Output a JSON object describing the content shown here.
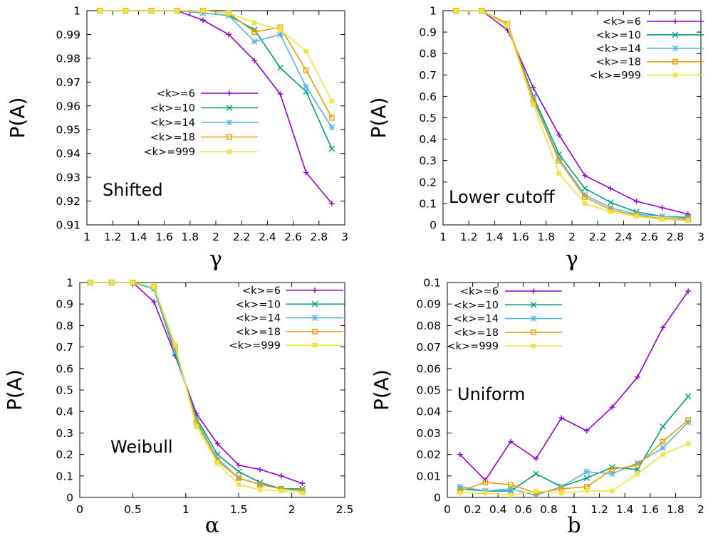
{
  "colors": {
    "k6": "#9400d3",
    "k10": "#009e73",
    "k14": "#56b4e9",
    "k18": "#e69f00",
    "k999": "#f0e442"
  },
  "chart_data": [
    {
      "type": "line",
      "annotation": "Shifted",
      "xlabel": "γ",
      "ylabel": "P(A)",
      "xlim": [
        1,
        3
      ],
      "ylim": [
        0.91,
        1
      ],
      "xticks": [
        "1",
        "1.2",
        "1.4",
        "1.6",
        "1.8",
        "2",
        "2.2",
        "2.4",
        "2.6",
        "2.8",
        "3"
      ],
      "yticks": [
        "0.91",
        "0.92",
        "0.93",
        "0.94",
        "0.95",
        "0.96",
        "0.97",
        "0.98",
        "0.99",
        "1"
      ],
      "legend_position": "left-middle",
      "x": [
        1.1,
        1.3,
        1.5,
        1.7,
        1.9,
        2.1,
        2.3,
        2.5,
        2.7,
        2.9
      ],
      "series": [
        {
          "name": "<k>=6",
          "values": [
            1,
            1,
            1,
            1,
            0.996,
            0.99,
            0.979,
            0.965,
            0.932,
            0.919
          ]
        },
        {
          "name": "<k>=10",
          "values": [
            1,
            1,
            1,
            1,
            0.999,
            0.998,
            0.992,
            0.976,
            0.966,
            0.942
          ]
        },
        {
          "name": "<k>=14",
          "values": [
            1,
            1,
            1,
            1,
            0.999,
            0.998,
            0.987,
            0.99,
            0.968,
            0.951
          ]
        },
        {
          "name": "<k>=18",
          "values": [
            1,
            1,
            1,
            1,
            1,
            0.999,
            0.991,
            0.993,
            0.975,
            0.955
          ]
        },
        {
          "name": "<k>=999",
          "values": [
            1,
            1,
            1,
            1,
            1,
            0.999,
            0.995,
            0.992,
            0.983,
            0.962
          ]
        }
      ]
    },
    {
      "type": "line",
      "annotation": "Lower cutoff",
      "xlabel": "γ",
      "ylabel": "P(A)",
      "xlim": [
        1,
        3
      ],
      "ylim": [
        0,
        1
      ],
      "xticks": [
        "1",
        "1.2",
        "1.4",
        "1.6",
        "1.8",
        "2",
        "2.2",
        "2.4",
        "2.6",
        "2.8",
        "3"
      ],
      "yticks": [
        "0",
        "0.1",
        "0.2",
        "0.3",
        "0.4",
        "0.5",
        "0.6",
        "0.7",
        "0.8",
        "0.9",
        "1"
      ],
      "legend_position": "top-right",
      "x": [
        1.1,
        1.3,
        1.5,
        1.7,
        1.9,
        2.1,
        2.3,
        2.5,
        2.7,
        2.9
      ],
      "series": [
        {
          "name": "<k>=6",
          "values": [
            1,
            1,
            0.91,
            0.64,
            0.42,
            0.23,
            0.17,
            0.11,
            0.08,
            0.05
          ]
        },
        {
          "name": "<k>=10",
          "values": [
            1,
            1,
            0.93,
            0.6,
            0.33,
            0.17,
            0.105,
            0.06,
            0.04,
            0.035
          ]
        },
        {
          "name": "<k>=14",
          "values": [
            1,
            1,
            0.93,
            0.59,
            0.31,
            0.14,
            0.08,
            0.05,
            0.04,
            0.03
          ]
        },
        {
          "name": "<k>=18",
          "values": [
            1,
            1,
            0.94,
            0.58,
            0.3,
            0.13,
            0.07,
            0.045,
            0.03,
            0.025
          ]
        },
        {
          "name": "<k>=999",
          "values": [
            1,
            1,
            0.93,
            0.56,
            0.24,
            0.1,
            0.06,
            0.04,
            0.025,
            0.02
          ]
        }
      ]
    },
    {
      "type": "line",
      "annotation": "Weibull",
      "xlabel": "α",
      "ylabel": "P(A)",
      "xlim": [
        0,
        2.5
      ],
      "ylim": [
        0,
        1
      ],
      "xticks": [
        "0",
        "0.5",
        "1",
        "1.5",
        "2",
        "2.5"
      ],
      "yticks": [
        "0",
        "0.1",
        "0.2",
        "0.3",
        "0.4",
        "0.5",
        "0.6",
        "0.7",
        "0.8",
        "0.9",
        "1"
      ],
      "legend_position": "top-right",
      "x": [
        0.1,
        0.3,
        0.5,
        0.7,
        0.9,
        1.1,
        1.3,
        1.5,
        1.7,
        1.9,
        2.1
      ],
      "series": [
        {
          "name": "<k>=6",
          "values": [
            1,
            1,
            1,
            0.91,
            0.66,
            0.39,
            0.25,
            0.15,
            0.13,
            0.1,
            0.065
          ]
        },
        {
          "name": "<k>=10",
          "values": [
            1,
            1,
            1,
            0.97,
            0.67,
            0.37,
            0.2,
            0.12,
            0.07,
            0.04,
            0.04
          ]
        },
        {
          "name": "<k>=14",
          "values": [
            1,
            1,
            1,
            0.97,
            0.68,
            0.36,
            0.18,
            0.09,
            0.06,
            0.04,
            0.03
          ]
        },
        {
          "name": "<k>=18",
          "values": [
            1,
            1,
            1,
            0.98,
            0.7,
            0.35,
            0.17,
            0.09,
            0.06,
            0.04,
            0.03
          ]
        },
        {
          "name": "<k>=999",
          "values": [
            1,
            1,
            1,
            0.98,
            0.71,
            0.33,
            0.16,
            0.06,
            0.035,
            0.03,
            0.02
          ]
        }
      ]
    },
    {
      "type": "line",
      "annotation": "Uniform",
      "xlabel": "b",
      "ylabel": "P(A)",
      "xlim": [
        0,
        2
      ],
      "ylim": [
        0,
        0.1
      ],
      "xticks": [
        "0",
        "0.2",
        "0.4",
        "0.6",
        "0.8",
        "1",
        "1.2",
        "1.4",
        "1.6",
        "1.8",
        "2"
      ],
      "yticks": [
        "0",
        "0.01",
        "0.02",
        "0.03",
        "0.04",
        "0.05",
        "0.06",
        "0.07",
        "0.08",
        "0.09",
        "0.1"
      ],
      "legend_position": "top-left",
      "x": [
        0.1,
        0.3,
        0.5,
        0.7,
        0.9,
        1.1,
        1.3,
        1.5,
        1.7,
        1.9
      ],
      "series": [
        {
          "name": "<k>=6",
          "values": [
            0.02,
            0.008,
            0.026,
            0.018,
            0.037,
            0.031,
            0.042,
            0.056,
            0.079,
            0.096
          ]
        },
        {
          "name": "<k>=10",
          "values": [
            0.004,
            0.003,
            0.003,
            0.011,
            0.005,
            0.009,
            0.014,
            0.013,
            0.033,
            0.047
          ]
        },
        {
          "name": "<k>=14",
          "values": [
            0.005,
            0.003,
            0.004,
            0.001,
            0.005,
            0.012,
            0.011,
            0.016,
            0.023,
            0.035
          ]
        },
        {
          "name": "<k>=18",
          "values": [
            0.003,
            0.007,
            0.006,
            0.002,
            0.004,
            0.005,
            0.013,
            0.015,
            0.026,
            0.036
          ]
        },
        {
          "name": "<k>=999",
          "values": [
            0.002,
            0.002,
            0.001,
            0.003,
            0.002,
            0.003,
            0.003,
            0.011,
            0.02,
            0.025
          ]
        }
      ]
    }
  ]
}
